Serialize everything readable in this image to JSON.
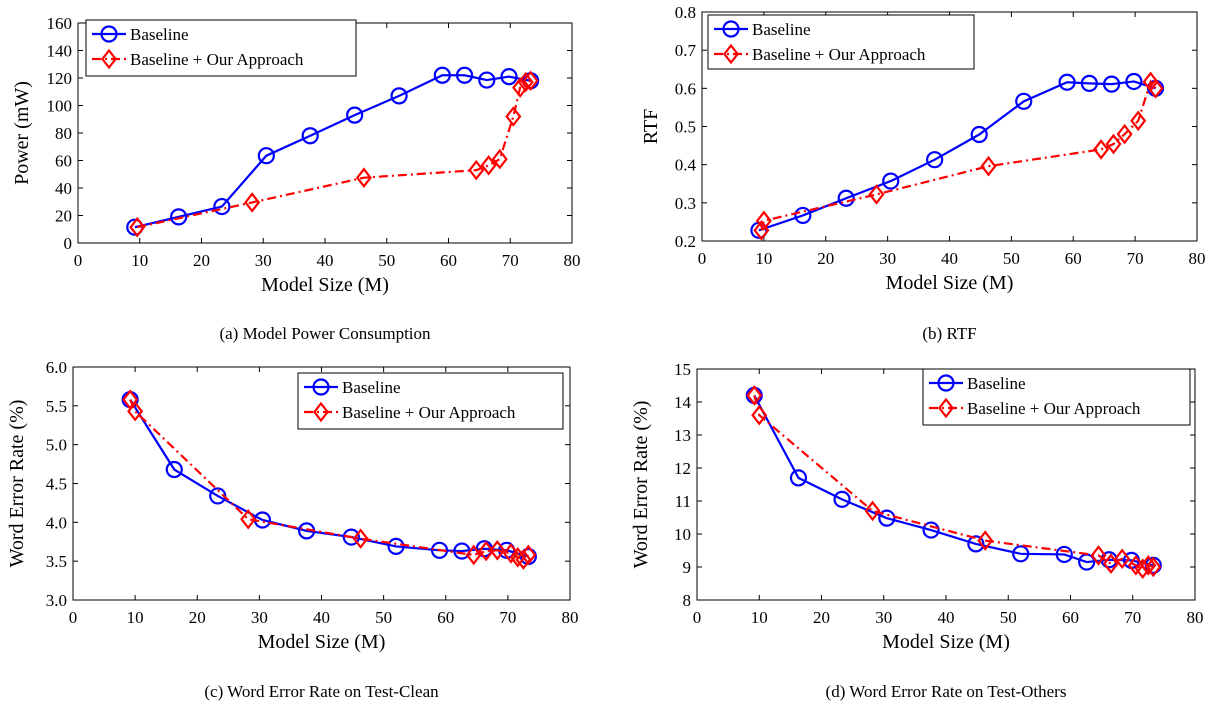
{
  "chart_data": [
    {
      "type": "line",
      "caption": "(a) Model Power Consumption",
      "xlabel": "Model Size (M)",
      "ylabel": "Power (mW)",
      "xlim": [
        0,
        80
      ],
      "ylim": [
        0,
        160
      ],
      "xticks": [
        "0",
        "10",
        "20",
        "30",
        "40",
        "50",
        "60",
        "70",
        "80"
      ],
      "yticks": [
        "0",
        "20",
        "40",
        "60",
        "80",
        "100",
        "120",
        "140",
        "160"
      ],
      "grid": false,
      "legend_position": "top-left",
      "series": [
        {
          "name": "Baseline",
          "color": "#0000ff",
          "marker": "circle",
          "line_style": "solid",
          "x": [
            9.2,
            16.3,
            23.3,
            30.5,
            37.6,
            44.8,
            52.0,
            59.0,
            62.6,
            66.2,
            69.8,
            73.3
          ],
          "y": [
            11.5,
            19,
            26.5,
            63.5,
            78,
            93,
            107,
            122,
            122,
            118.5,
            121,
            118
          ]
        },
        {
          "name": "Baseline + Our Approach",
          "color": "#ff0000",
          "marker": "diamond",
          "line_style": "dashdot",
          "x": [
            9.6,
            28.2,
            46.3,
            64.5,
            66.5,
            68.3,
            70.5,
            71.6,
            72.5,
            73.3
          ],
          "y": [
            11.5,
            29.5,
            47.5,
            53,
            56.5,
            61,
            92,
            113,
            117,
            118
          ]
        }
      ]
    },
    {
      "type": "line",
      "caption": "(b) RTF",
      "xlabel": "Model Size (M)",
      "ylabel": "RTF",
      "xlim": [
        0,
        80
      ],
      "ylim": [
        0.2,
        0.8
      ],
      "xticks": [
        "0",
        "10",
        "20",
        "30",
        "40",
        "50",
        "60",
        "70",
        "80"
      ],
      "yticks": [
        "0.2",
        "0.3",
        "0.4",
        "0.5",
        "0.6",
        "0.7",
        "0.8"
      ],
      "grid": false,
      "legend_position": "top-left",
      "series": [
        {
          "name": "Baseline",
          "color": "#0000ff",
          "marker": "circle",
          "line_style": "solid",
          "x": [
            9.2,
            16.3,
            23.3,
            30.5,
            37.6,
            44.8,
            52.0,
            59.0,
            62.6,
            66.2,
            69.8,
            73.3
          ],
          "y": [
            0.228,
            0.267,
            0.312,
            0.357,
            0.413,
            0.479,
            0.566,
            0.616,
            0.613,
            0.611,
            0.618,
            0.6
          ]
        },
        {
          "name": "Baseline + Our Approach",
          "color": "#ff0000",
          "marker": "diamond",
          "line_style": "dashdot",
          "x": [
            9.6,
            10.0,
            28.2,
            46.3,
            64.5,
            66.5,
            68.3,
            70.5,
            72.5,
            73.3
          ],
          "y": [
            0.228,
            0.253,
            0.322,
            0.396,
            0.44,
            0.454,
            0.48,
            0.515,
            0.617,
            0.6
          ]
        }
      ]
    },
    {
      "type": "line",
      "caption": "(c) Word Error Rate on Test-Clean",
      "xlabel": "Model Size (M)",
      "ylabel": "Word Error Rate (%)",
      "xlim": [
        0,
        80
      ],
      "ylim": [
        3.0,
        6.0
      ],
      "xticks": [
        "0",
        "10",
        "20",
        "30",
        "40",
        "50",
        "60",
        "70",
        "80"
      ],
      "yticks": [
        "3.0",
        "3.5",
        "4.0",
        "4.5",
        "5.0",
        "5.5",
        "6.0"
      ],
      "grid": false,
      "legend_position": "top-right",
      "series": [
        {
          "name": "Baseline",
          "color": "#0000ff",
          "marker": "circle",
          "line_style": "solid",
          "x": [
            9.2,
            16.3,
            23.3,
            30.5,
            37.6,
            44.8,
            52.0,
            59.0,
            62.6,
            66.2,
            69.8,
            73.3
          ],
          "y": [
            5.58,
            4.68,
            4.34,
            4.03,
            3.89,
            3.81,
            3.69,
            3.64,
            3.63,
            3.66,
            3.64,
            3.56
          ]
        },
        {
          "name": "Baseline + Our Approach",
          "color": "#ff0000",
          "marker": "diamond",
          "line_style": "dashdot",
          "x": [
            9.2,
            10.0,
            28.2,
            46.3,
            64.5,
            66.5,
            68.3,
            70.5,
            71.6,
            72.5,
            73.3
          ],
          "y": [
            5.58,
            5.43,
            4.04,
            3.79,
            3.58,
            3.63,
            3.64,
            3.6,
            3.55,
            3.52,
            3.58
          ]
        }
      ]
    },
    {
      "type": "line",
      "caption": "(d) Word Error Rate on Test-Others",
      "xlabel": "Model Size (M)",
      "ylabel": "Word Error Rate (%)",
      "xlim": [
        0,
        80
      ],
      "ylim": [
        8,
        15
      ],
      "xticks": [
        "0",
        "10",
        "20",
        "30",
        "40",
        "50",
        "60",
        "70",
        "80"
      ],
      "yticks": [
        "8",
        "9",
        "10",
        "11",
        "12",
        "13",
        "14",
        "15"
      ],
      "grid": false,
      "legend_position": "top-right",
      "series": [
        {
          "name": "Baseline",
          "color": "#0000ff",
          "marker": "circle",
          "line_style": "solid",
          "x": [
            9.2,
            16.3,
            23.3,
            30.5,
            37.6,
            44.8,
            52.0,
            59.0,
            62.6,
            66.2,
            69.8,
            73.3
          ],
          "y": [
            14.2,
            11.7,
            11.05,
            10.48,
            10.12,
            9.7,
            9.4,
            9.38,
            9.15,
            9.22,
            9.2,
            9.05
          ]
        },
        {
          "name": "Baseline + Our Approach",
          "color": "#ff0000",
          "marker": "diamond",
          "line_style": "dashdot",
          "x": [
            9.2,
            10.0,
            28.2,
            46.3,
            64.5,
            66.5,
            68.3,
            70.5,
            71.6,
            72.5,
            73.3
          ],
          "y": [
            14.2,
            13.6,
            10.7,
            9.8,
            9.35,
            9.1,
            9.25,
            9.05,
            8.95,
            9.05,
            9.0
          ]
        }
      ]
    }
  ]
}
